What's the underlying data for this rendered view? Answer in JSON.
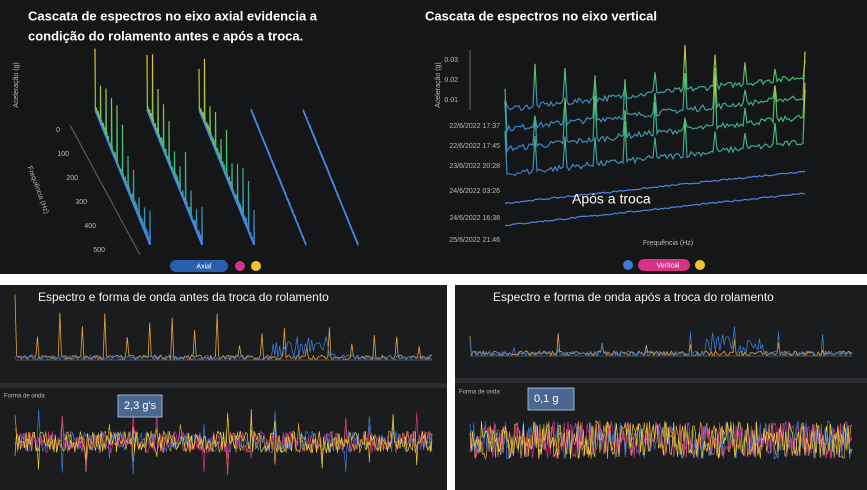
{
  "left_top": {
    "title_lines": [
      "Cascata de espectros no eixo axial evidencia a",
      "condição do rolamento antes e após a troca."
    ],
    "axis_y": "Aceleração (g)",
    "axis_x": "Frequência (Hz)",
    "freq_ticks": [
      "0",
      "100",
      "200",
      "300",
      "400",
      "500"
    ],
    "legend": "Axial"
  },
  "right_top": {
    "title": "Cascata de espectros no eixo vertical",
    "axis_y": "Aceleração (g)",
    "amp_ticks": [
      "0.03",
      "0.02",
      "0.01"
    ],
    "dates": [
      "22/6/2022 17:37",
      "22/6/2022 17:45",
      "23/6/2022 20:28",
      "24/6/2022 03:26",
      "24/6/2022 16:38",
      "25/6/2022 21:46"
    ],
    "annotation": "Após a troca",
    "axis_x": "Frequência (Hz)",
    "legend": "Vertical"
  },
  "bottom_left": {
    "title": "Espectro e forma de onda antes da troca do rolamento",
    "waveform_label": "Forma de onda",
    "annotation": "2,3 g's"
  },
  "bottom_right": {
    "title": "Espectro e forma de onda após a troca do rolamento",
    "waveform_label": "Forma de onda",
    "annotation": "0,1 g"
  }
}
